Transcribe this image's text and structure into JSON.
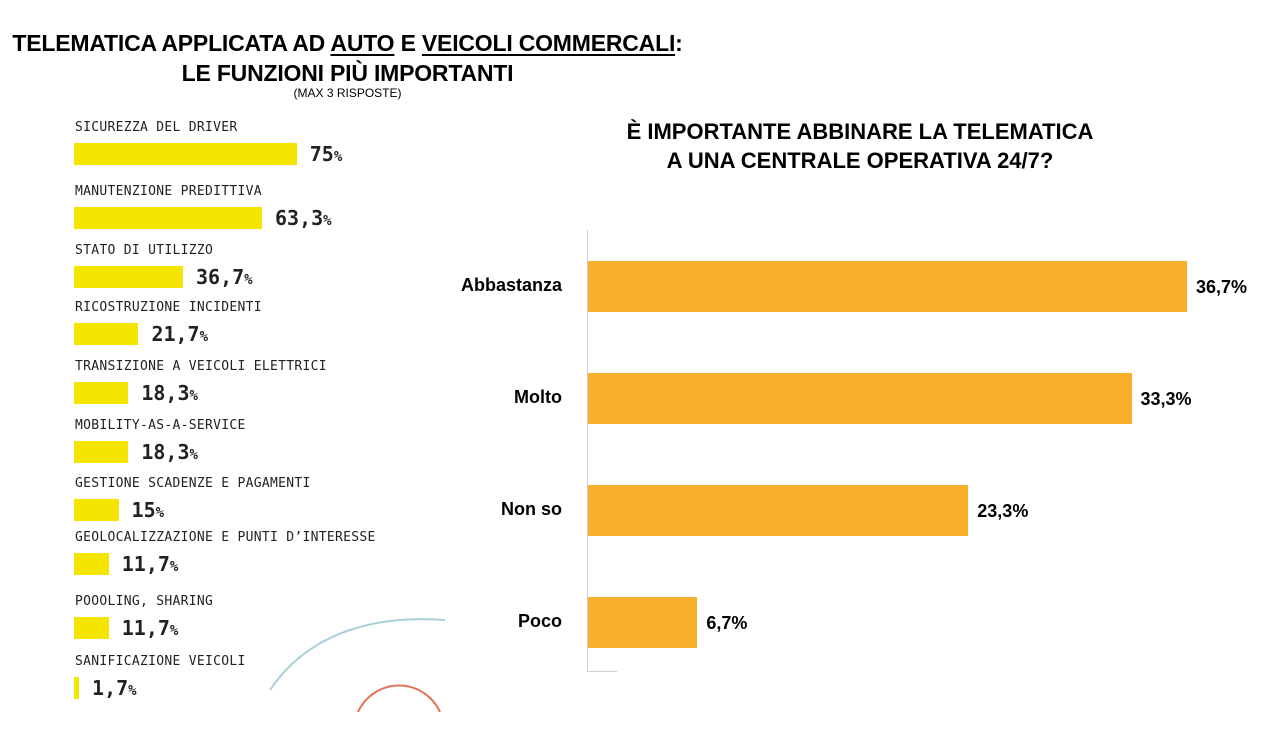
{
  "header": {
    "title_prefix": "TELEMATICA APPLICATA AD ",
    "title_auto": "AUTO",
    "title_mid": " E ",
    "title_veicoli": "VEICOLI COMMERCALI",
    "title_colon": ":",
    "title_line2": "LE FUNZIONI PIÙ IMPORTANTI",
    "subtitle": "(MAX 3 RISPOSTE)"
  },
  "chart_data": [
    {
      "type": "bar",
      "orientation": "horizontal",
      "title": "TELEMATICA APPLICATA AD AUTO E VEICOLI COMMERCALI: LE FUNZIONI PIÙ IMPORTANTI",
      "subtitle": "(MAX 3 RISPOSTE)",
      "bar_color": "#f3e500",
      "categories": [
        "SICUREZZA DEL DRIVER",
        "MANUTENZIONE PREDITTIVA",
        "STATO DI UTILIZZO",
        "RICOSTRUZIONE INCIDENTI",
        "TRANSIZIONE A VEICOLI ELETTRICI",
        "MOBILITY-AS-A-SERVICE",
        "GESTIONE SCADENZE E PAGAMENTI",
        "GEOLOCALIZZAZIONE E PUNTI D’INTERESSE",
        "POOOLING, SHARING",
        "SANIFICAZIONE VEICOLI"
      ],
      "values": [
        75,
        63.3,
        36.7,
        21.7,
        18.3,
        18.3,
        15,
        11.7,
        11.7,
        1.7
      ],
      "value_labels": [
        "75",
        "63,3",
        "36,7",
        "21,7",
        "18,3",
        "18,3",
        "15",
        "11,7",
        "11,7",
        "1,7"
      ],
      "unit": "%"
    },
    {
      "type": "bar",
      "orientation": "horizontal",
      "title_line1": "È IMPORTANTE ABBINARE LA TELEMATICA",
      "title_line2": "A UNA CENTRALE OPERATIVA 24/7?",
      "bar_color": "#f8b02a",
      "categories": [
        "Abbastanza",
        "Molto",
        "Non so",
        "Poco"
      ],
      "values": [
        36.7,
        33.3,
        23.3,
        6.7
      ],
      "value_labels": [
        "36,7%",
        "33,3%",
        "23,3%",
        "6,7%"
      ]
    }
  ]
}
